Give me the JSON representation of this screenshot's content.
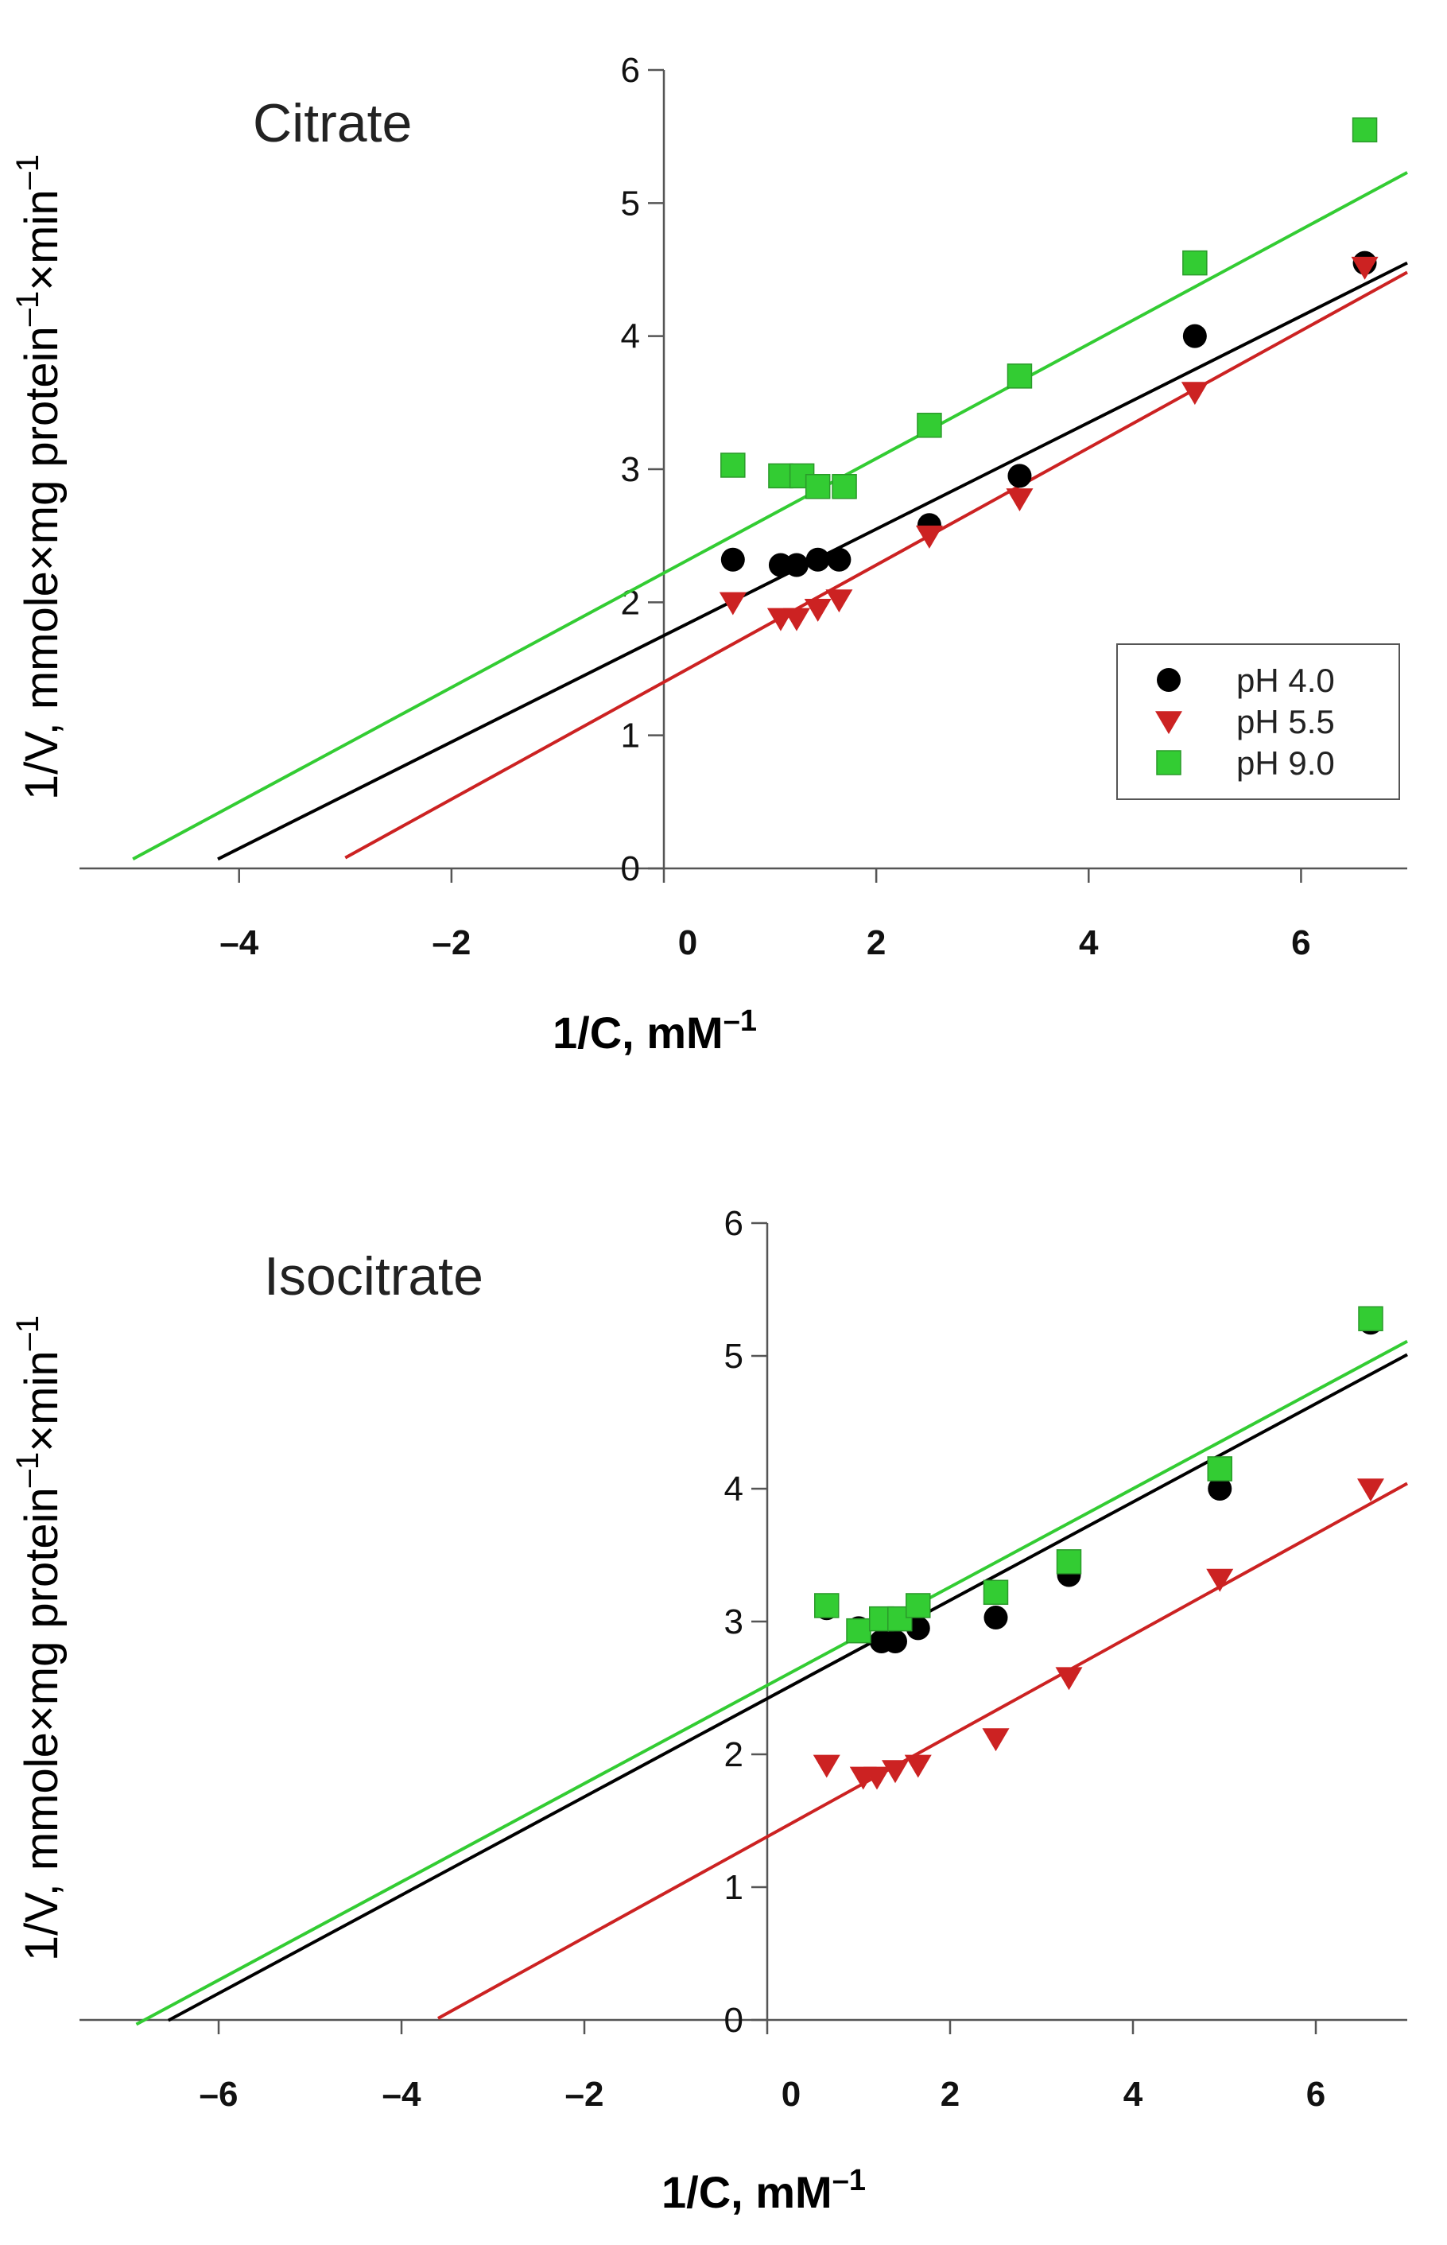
{
  "chart_data": [
    {
      "type": "scatter",
      "title": "Citrate",
      "xlabel": "1/C, mM",
      "xlabel_sup": "–1",
      "ylabel_parts": [
        "1/V, mmole×mg protein",
        "–1",
        "×min",
        "–1"
      ],
      "xlim": [
        -5.4,
        7.0
      ],
      "ylim": [
        0,
        6
      ],
      "xticks": [
        -4,
        -2,
        0,
        2,
        4,
        6
      ],
      "xtick_labels": [
        "–4",
        "–2",
        "0",
        "2",
        "4",
        "6"
      ],
      "yticks": [
        0,
        1,
        2,
        3,
        4,
        5,
        6
      ],
      "ytick_labels": [
        "0",
        "1",
        "2",
        "3",
        "4",
        "5",
        "6"
      ],
      "legend": true,
      "series": [
        {
          "name": "pH 4.0",
          "color": "#000000",
          "marker": "circle",
          "x": [
            0.65,
            1.1,
            1.25,
            1.45,
            1.65,
            2.5,
            3.35,
            5.0,
            6.6
          ],
          "y": [
            2.32,
            2.28,
            2.28,
            2.32,
            2.32,
            2.58,
            2.95,
            4.0,
            4.55
          ],
          "fit": {
            "slope": 0.4,
            "intercept": 1.75,
            "x0": -4.2,
            "x1": 7.0
          }
        },
        {
          "name": "pH 5.5",
          "color": "#cc2222",
          "marker": "triangle",
          "x": [
            0.65,
            1.1,
            1.25,
            1.45,
            1.65,
            2.5,
            3.35,
            5.0,
            6.6
          ],
          "y": [
            2.0,
            1.88,
            1.88,
            1.95,
            2.02,
            2.5,
            2.78,
            3.58,
            4.52
          ],
          "fit": {
            "slope": 0.44,
            "intercept": 1.4,
            "x0": -3.0,
            "x1": 7.0
          }
        },
        {
          "name": "pH 9.0",
          "color": "#33cc33",
          "marker": "square",
          "x": [
            0.65,
            1.1,
            1.3,
            1.45,
            1.7,
            2.5,
            3.35,
            5.0,
            6.6
          ],
          "y": [
            3.03,
            2.95,
            2.95,
            2.87,
            2.87,
            3.33,
            3.7,
            4.55,
            5.55
          ],
          "fit": {
            "slope": 0.43,
            "intercept": 2.22,
            "x0": -5.0,
            "x1": 7.0
          }
        }
      ]
    },
    {
      "type": "scatter",
      "title": "Isocitrate",
      "xlabel": "1/C, mM",
      "xlabel_sup": "–1",
      "ylabel_parts": [
        "1/V, mmole×mg protein",
        "–1",
        "×min",
        "–1"
      ],
      "xlim": [
        -7.4,
        7.0
      ],
      "ylim": [
        0,
        6
      ],
      "xticks": [
        -6,
        -4,
        -2,
        0,
        2,
        4,
        6
      ],
      "xtick_labels": [
        "–6",
        "–4",
        "–2",
        "0",
        "2",
        "4",
        "6"
      ],
      "yticks": [
        0,
        1,
        2,
        3,
        4,
        5,
        6
      ],
      "ytick_labels": [
        "0",
        "1",
        "2",
        "3",
        "4",
        "5",
        "6"
      ],
      "legend": false,
      "series": [
        {
          "name": "pH 4.0",
          "color": "#000000",
          "marker": "circle",
          "x": [
            0.65,
            1.0,
            1.25,
            1.4,
            1.65,
            2.5,
            3.3,
            4.95,
            6.6
          ],
          "y": [
            3.1,
            2.95,
            2.85,
            2.85,
            2.95,
            3.03,
            3.35,
            4.0,
            5.25
          ],
          "fit": {
            "slope": 0.37,
            "intercept": 2.42,
            "x0": -6.55,
            "x1": 7.0
          }
        },
        {
          "name": "pH 5.5",
          "color": "#cc2222",
          "marker": "triangle",
          "x": [
            0.65,
            1.05,
            1.2,
            1.4,
            1.65,
            2.5,
            3.3,
            4.95,
            6.6
          ],
          "y": [
            1.92,
            1.83,
            1.83,
            1.88,
            1.92,
            2.12,
            2.58,
            3.32,
            4.0
          ],
          "fit": {
            "slope": 0.38,
            "intercept": 1.38,
            "x0": -3.6,
            "x1": 7.0
          }
        },
        {
          "name": "pH 9.0",
          "color": "#33cc33",
          "marker": "square",
          "x": [
            0.65,
            1.0,
            1.25,
            1.45,
            1.65,
            2.5,
            3.3,
            4.95,
            6.6
          ],
          "y": [
            3.12,
            2.93,
            3.02,
            3.02,
            3.12,
            3.22,
            3.45,
            4.15,
            5.28
          ],
          "fit": {
            "slope": 0.37,
            "intercept": 2.52,
            "x0": -6.9,
            "x1": 7.0
          }
        }
      ]
    }
  ]
}
